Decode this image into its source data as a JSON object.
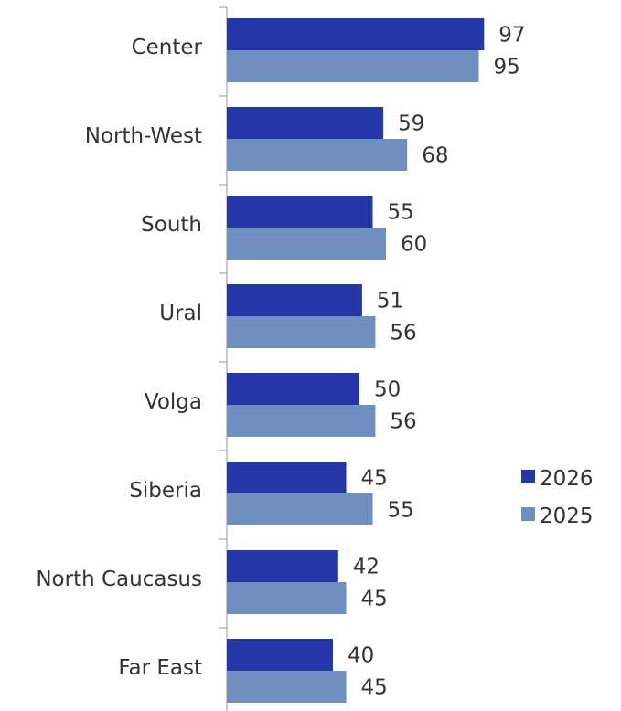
{
  "chart_data": {
    "type": "bar",
    "orientation": "horizontal",
    "categories": [
      "Center",
      "North-West",
      "South",
      "Ural",
      "Volga",
      "Siberia",
      "North Caucasus",
      "Far East"
    ],
    "series": [
      {
        "name": "2026",
        "values": [
          97,
          59,
          55,
          51,
          50,
          45,
          42,
          40
        ],
        "color": "#2536a8"
      },
      {
        "name": "2025",
        "values": [
          95,
          68,
          60,
          56,
          56,
          55,
          45,
          45
        ],
        "color": "#6f8fc0"
      }
    ],
    "xlim": [
      0,
      100
    ],
    "grid": false,
    "legend": "right"
  }
}
